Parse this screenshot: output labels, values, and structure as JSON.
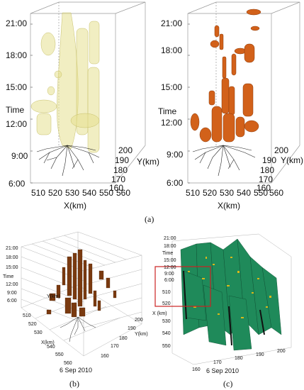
{
  "panel_a": {
    "left_plot": {
      "time_ticks": [
        "21:00",
        "18:00",
        "15:00",
        "12:00",
        "9:00",
        "6:00"
      ],
      "time_label": "Time",
      "y_ticks": [
        "200",
        "190",
        "180",
        "170",
        "160"
      ],
      "y_label": "Y(km)",
      "x_ticks": [
        "510",
        "520",
        "530",
        "540",
        "550",
        "560"
      ],
      "x_label": "X(km)"
    },
    "right_plot": {
      "time_ticks": [
        "21:00",
        "18:00",
        "15:00",
        "12:00",
        "9:00",
        "6:00"
      ],
      "time_label": "Time",
      "y_ticks": [
        "200",
        "190",
        "180",
        "170",
        "160"
      ],
      "y_label": "Y(km)",
      "x_ticks": [
        "510",
        "520",
        "530",
        "540",
        "550",
        "560"
      ],
      "x_label": "X(km)"
    },
    "caption": "(a)"
  },
  "panel_b": {
    "time_ticks": [
      "21:00",
      "18:00",
      "15:00",
      "12:00",
      "9:00",
      "6:00"
    ],
    "time_label": "Time",
    "y_inner_label": "Y(km)",
    "x_ticks": [
      "510",
      "520",
      "530",
      "540",
      "550",
      "560"
    ],
    "x_label": "X(km)",
    "y_ticks": [
      "200",
      "190",
      "180",
      "170",
      "160"
    ],
    "y_label": "Y(km)",
    "date": "6 Sep 2010",
    "caption": "(b)"
  },
  "panel_c": {
    "time_ticks": [
      "21:00",
      "18:00",
      "15:00",
      "12:00",
      "9:00",
      "6:00"
    ],
    "time_label": "Time",
    "x_ticks": [
      "510",
      "520",
      "530",
      "540",
      "550"
    ],
    "x_label": "X (km)",
    "y_ticks": [
      "160",
      "170",
      "180",
      "190",
      "200"
    ],
    "date": "6 Sep 2010",
    "caption": "(c)"
  },
  "colors": {
    "yellow_volume": "#e8e39a",
    "orange_volume": "#d4621a",
    "brown_volume": "#7a3a10",
    "green_surface": "#1f8a5a",
    "highlight_box": "#cc2222"
  }
}
